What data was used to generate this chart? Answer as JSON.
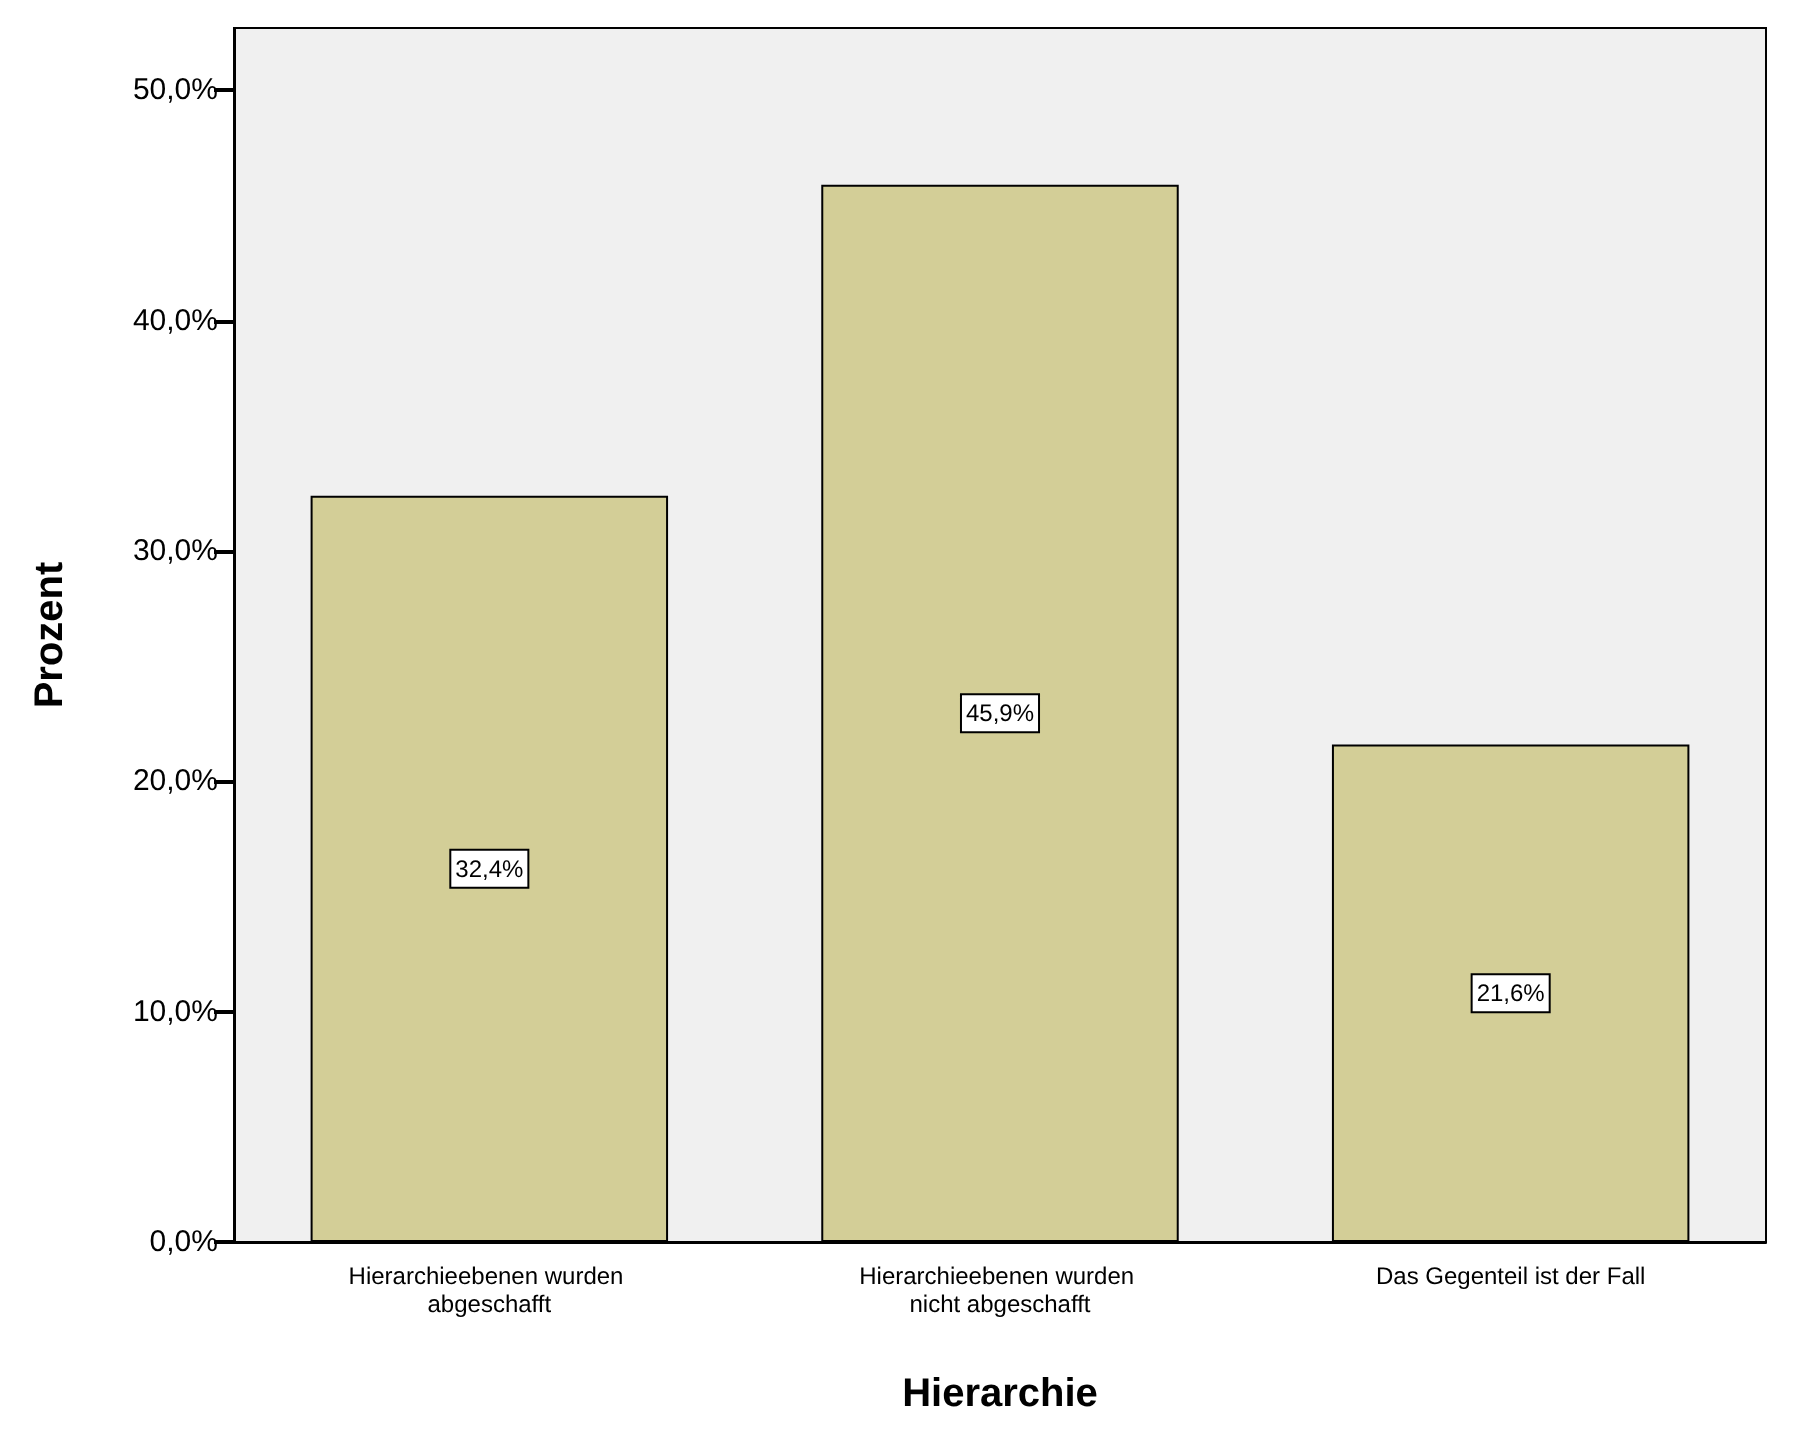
{
  "chart_data": {
    "type": "bar",
    "xlabel": "Hierarchie",
    "ylabel": "Prozent",
    "categories": [
      "Hierarchieebenen wurden abgeschafft",
      "Hierarchieebenen wurden nicht abgeschafft",
      "Das Gegenteil ist der Fall"
    ],
    "values": [
      32.4,
      45.9,
      21.6
    ],
    "color": "#d3ce97",
    "value_labels": [
      "32,4%",
      "45,9%",
      "21,6%"
    ],
    "ylim": [
      0,
      52.7
    ],
    "yticks": [
      {
        "value": 0,
        "label": "0,0%"
      },
      {
        "value": 10,
        "label": "10,0%"
      },
      {
        "value": 20,
        "label": "20,0%"
      },
      {
        "value": 30,
        "label": "30,0%"
      },
      {
        "value": 40,
        "label": "40,0%"
      },
      {
        "value": 50,
        "label": "50,0%"
      }
    ],
    "grid": false
  }
}
